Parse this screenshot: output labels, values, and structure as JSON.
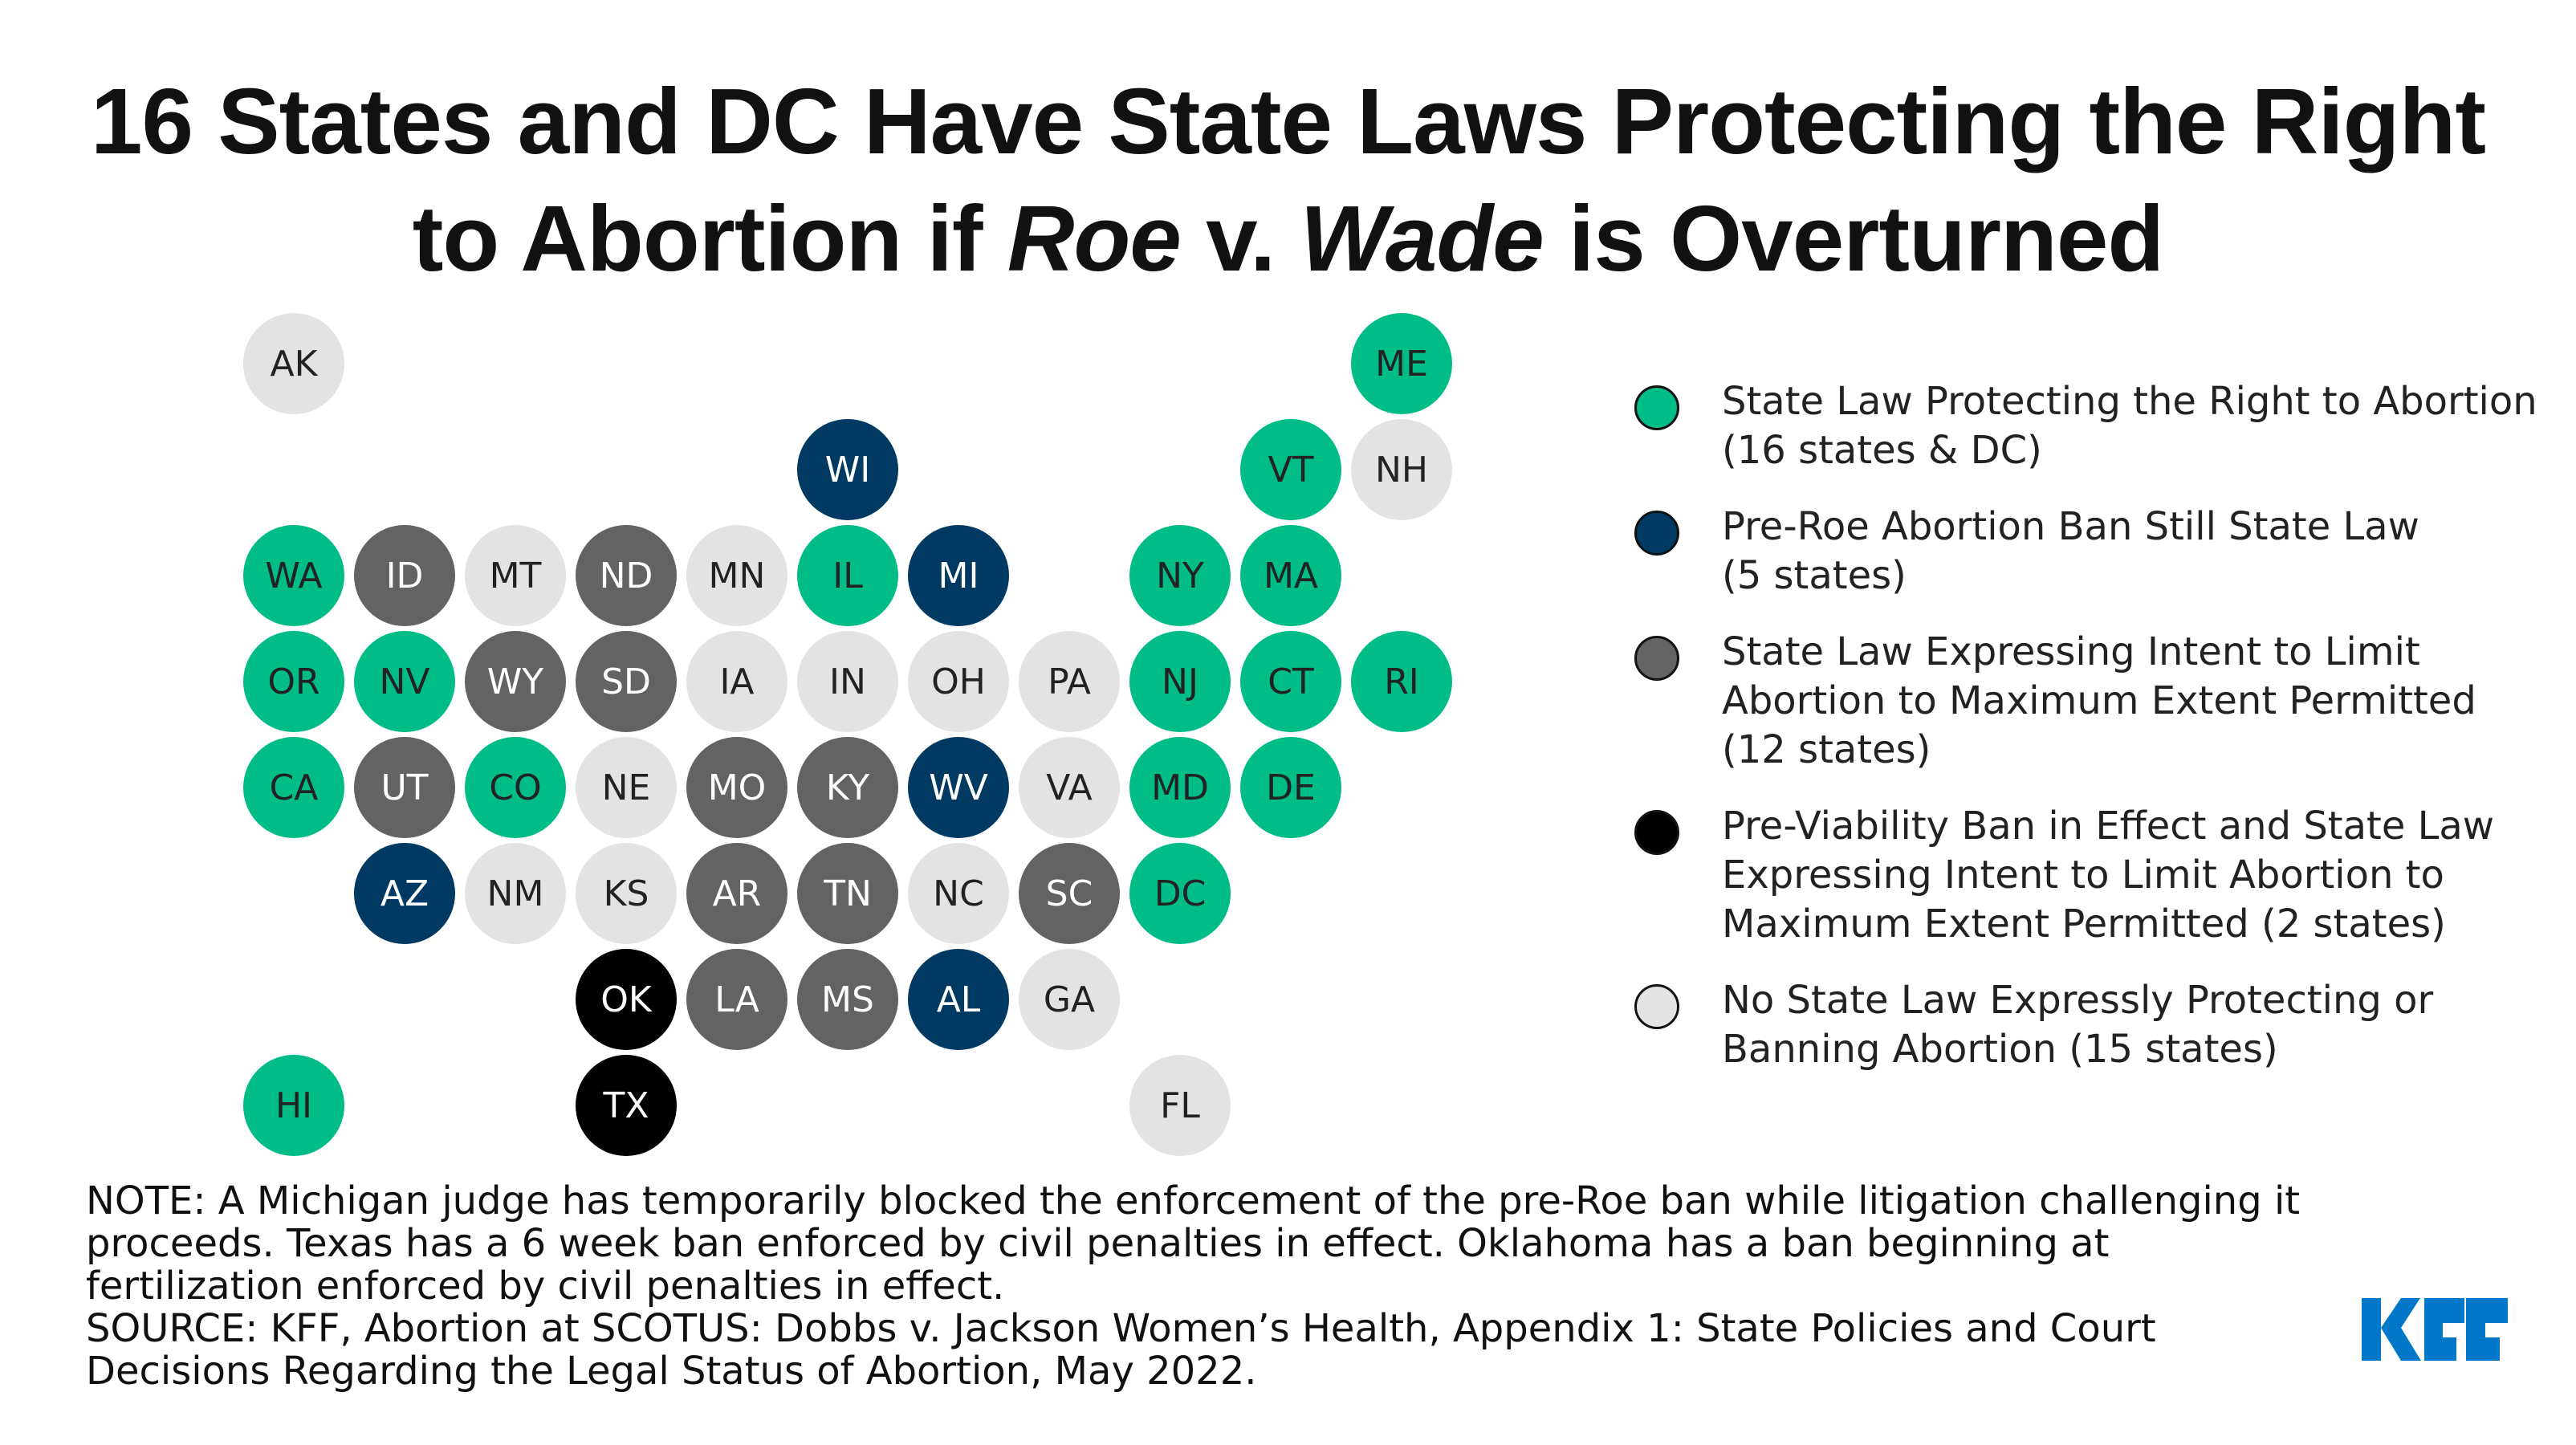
{
  "title": {
    "line1": "16 States and DC Have State Laws Protecting the Right",
    "line2_pre": "to Abortion if ",
    "line2_italic1": "Roe",
    "line2_mid": " v. ",
    "line2_italic2": "Wade",
    "line2_post": " is Overturned"
  },
  "colors": {
    "protect": "#00BC87",
    "pre_roe": "#003A63",
    "intent": "#636363",
    "pre_viability": "#000000",
    "none": "#E3E3E3"
  },
  "chart_data": {
    "type": "tile-map",
    "categories": [
      {
        "key": "protect",
        "label": "State Law Protecting the Right to Abortion",
        "count_label": "(16 states & DC)"
      },
      {
        "key": "pre_roe",
        "label": "Pre-Roe Abortion Ban Still State Law",
        "count_label": "(5 states)"
      },
      {
        "key": "intent",
        "label": "State Law Expressing Intent to Limit Abortion to Maximum Extent Permitted",
        "count_label": "(12 states)"
      },
      {
        "key": "pre_viability",
        "label": "Pre-Viability Ban in Effect and State Law Expressing Intent to Limit Abortion to Maximum Extent Permitted",
        "count_label": "(2 states)"
      },
      {
        "key": "none",
        "label": "No State Law Expressly Protecting or Banning Abortion",
        "count_label": "(15 states)"
      }
    ],
    "states": [
      {
        "abbr": "AK",
        "cat": "none",
        "col": 0,
        "row": 0
      },
      {
        "abbr": "ME",
        "cat": "protect",
        "col": 10,
        "row": 0
      },
      {
        "abbr": "WI",
        "cat": "pre_roe",
        "col": 5,
        "row": 1
      },
      {
        "abbr": "VT",
        "cat": "protect",
        "col": 9,
        "row": 1
      },
      {
        "abbr": "NH",
        "cat": "none",
        "col": 10,
        "row": 1
      },
      {
        "abbr": "WA",
        "cat": "protect",
        "col": 0,
        "row": 2
      },
      {
        "abbr": "ID",
        "cat": "intent",
        "col": 1,
        "row": 2
      },
      {
        "abbr": "MT",
        "cat": "none",
        "col": 2,
        "row": 2
      },
      {
        "abbr": "ND",
        "cat": "intent",
        "col": 3,
        "row": 2
      },
      {
        "abbr": "MN",
        "cat": "none",
        "col": 4,
        "row": 2
      },
      {
        "abbr": "IL",
        "cat": "protect",
        "col": 5,
        "row": 2
      },
      {
        "abbr": "MI",
        "cat": "pre_roe",
        "col": 6,
        "row": 2
      },
      {
        "abbr": "NY",
        "cat": "protect",
        "col": 8,
        "row": 2
      },
      {
        "abbr": "MA",
        "cat": "protect",
        "col": 9,
        "row": 2
      },
      {
        "abbr": "OR",
        "cat": "protect",
        "col": 0,
        "row": 3
      },
      {
        "abbr": "NV",
        "cat": "protect",
        "col": 1,
        "row": 3
      },
      {
        "abbr": "WY",
        "cat": "intent",
        "col": 2,
        "row": 3
      },
      {
        "abbr": "SD",
        "cat": "intent",
        "col": 3,
        "row": 3
      },
      {
        "abbr": "IA",
        "cat": "none",
        "col": 4,
        "row": 3
      },
      {
        "abbr": "IN",
        "cat": "none",
        "col": 5,
        "row": 3
      },
      {
        "abbr": "OH",
        "cat": "none",
        "col": 6,
        "row": 3
      },
      {
        "abbr": "PA",
        "cat": "none",
        "col": 7,
        "row": 3
      },
      {
        "abbr": "NJ",
        "cat": "protect",
        "col": 8,
        "row": 3
      },
      {
        "abbr": "CT",
        "cat": "protect",
        "col": 9,
        "row": 3
      },
      {
        "abbr": "RI",
        "cat": "protect",
        "col": 10,
        "row": 3
      },
      {
        "abbr": "CA",
        "cat": "protect",
        "col": 0,
        "row": 4
      },
      {
        "abbr": "UT",
        "cat": "intent",
        "col": 1,
        "row": 4
      },
      {
        "abbr": "CO",
        "cat": "protect",
        "col": 2,
        "row": 4
      },
      {
        "abbr": "NE",
        "cat": "none",
        "col": 3,
        "row": 4
      },
      {
        "abbr": "MO",
        "cat": "intent",
        "col": 4,
        "row": 4
      },
      {
        "abbr": "KY",
        "cat": "intent",
        "col": 5,
        "row": 4
      },
      {
        "abbr": "WV",
        "cat": "pre_roe",
        "col": 6,
        "row": 4
      },
      {
        "abbr": "VA",
        "cat": "none",
        "col": 7,
        "row": 4
      },
      {
        "abbr": "MD",
        "cat": "protect",
        "col": 8,
        "row": 4
      },
      {
        "abbr": "DE",
        "cat": "protect",
        "col": 9,
        "row": 4
      },
      {
        "abbr": "AZ",
        "cat": "pre_roe",
        "col": 1,
        "row": 5
      },
      {
        "abbr": "NM",
        "cat": "none",
        "col": 2,
        "row": 5
      },
      {
        "abbr": "KS",
        "cat": "none",
        "col": 3,
        "row": 5
      },
      {
        "abbr": "AR",
        "cat": "intent",
        "col": 4,
        "row": 5
      },
      {
        "abbr": "TN",
        "cat": "intent",
        "col": 5,
        "row": 5
      },
      {
        "abbr": "NC",
        "cat": "none",
        "col": 6,
        "row": 5
      },
      {
        "abbr": "SC",
        "cat": "intent",
        "col": 7,
        "row": 5
      },
      {
        "abbr": "DC",
        "cat": "protect",
        "col": 8,
        "row": 5
      },
      {
        "abbr": "OK",
        "cat": "pre_viability",
        "col": 3,
        "row": 6
      },
      {
        "abbr": "LA",
        "cat": "intent",
        "col": 4,
        "row": 6
      },
      {
        "abbr": "MS",
        "cat": "intent",
        "col": 5,
        "row": 6
      },
      {
        "abbr": "AL",
        "cat": "pre_roe",
        "col": 6,
        "row": 6
      },
      {
        "abbr": "GA",
        "cat": "none",
        "col": 7,
        "row": 6
      },
      {
        "abbr": "HI",
        "cat": "protect",
        "col": 0,
        "row": 7
      },
      {
        "abbr": "TX",
        "cat": "pre_viability",
        "col": 3,
        "row": 7
      },
      {
        "abbr": "FL",
        "cat": "none",
        "col": 8,
        "row": 7
      }
    ]
  },
  "notes": {
    "note": "NOTE: A Michigan judge has temporarily blocked the enforcement of the pre-Roe ban while litigation challenging it proceeds. Texas has a 6 week ban enforced by civil penalties in effect. Oklahoma has a ban beginning at fertilization enforced by civil penalties in effect.",
    "source": "SOURCE: KFF, Abortion at SCOTUS: Dobbs v. Jackson Women’s Health, Appendix 1: State Policies and Court Decisions Regarding the Legal Status of Abortion, May 2022."
  },
  "logo": {
    "text": "KFF",
    "color": "#0077C8"
  }
}
